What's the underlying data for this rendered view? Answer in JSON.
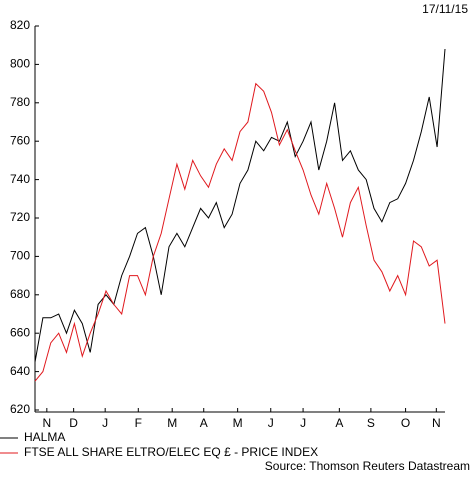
{
  "chart_data": {
    "type": "line",
    "date": "17/11/15",
    "source": "Source: Thomson Reuters Datastream",
    "x": [
      0,
      1,
      2,
      3,
      4,
      5,
      6,
      7,
      8,
      9,
      10,
      11,
      12,
      13,
      14,
      15,
      16,
      17,
      18,
      19,
      20,
      21,
      22,
      23,
      24,
      25,
      26,
      27,
      28,
      29,
      30,
      31,
      32,
      33,
      34,
      35,
      36,
      37,
      38,
      39,
      40,
      41,
      42,
      43,
      44,
      45,
      46,
      47,
      48,
      49,
      50,
      51,
      52
    ],
    "xlim": [
      0,
      52
    ],
    "xticks": [
      {
        "value": 1.5,
        "label": "N"
      },
      {
        "value": 4.9,
        "label": "D"
      },
      {
        "value": 8.9,
        "label": "J"
      },
      {
        "value": 13.1,
        "label": "F"
      },
      {
        "value": 17.4,
        "label": "M"
      },
      {
        "value": 21.4,
        "label": "A"
      },
      {
        "value": 25.7,
        "label": "M"
      },
      {
        "value": 29.9,
        "label": "J"
      },
      {
        "value": 34,
        "label": "J"
      },
      {
        "value": 38.6,
        "label": "A"
      },
      {
        "value": 42.6,
        "label": "S"
      },
      {
        "value": 47,
        "label": "O"
      },
      {
        "value": 50.9,
        "label": "N"
      }
    ],
    "ylim": [
      620,
      820
    ],
    "yticks": [
      620,
      640,
      660,
      680,
      700,
      720,
      740,
      760,
      780,
      800,
      820
    ],
    "series": [
      {
        "name": "HALMA",
        "color": "#000000",
        "values": [
          645,
          668,
          668,
          670,
          660,
          672,
          665,
          650,
          675,
          680,
          675,
          690,
          700,
          712,
          715,
          700,
          680,
          705,
          712,
          705,
          715,
          725,
          720,
          728,
          715,
          722,
          738,
          745,
          760,
          755,
          762,
          760,
          770,
          752,
          760,
          770,
          745,
          760,
          780,
          750,
          755,
          745,
          740,
          725,
          718,
          728,
          730,
          738,
          750,
          765,
          783,
          757,
          808
        ]
      },
      {
        "name": "FTSE ALL SHARE ELTRO/ELEC EQ £ - PRICE INDEX",
        "color": "#e0191e",
        "values": [
          635,
          640,
          655,
          660,
          650,
          665,
          648,
          660,
          670,
          682,
          675,
          670,
          690,
          690,
          680,
          700,
          712,
          730,
          748,
          735,
          750,
          742,
          736,
          748,
          756,
          750,
          765,
          770,
          790,
          786,
          775,
          758,
          766,
          755,
          745,
          732,
          722,
          738,
          725,
          710,
          728,
          736,
          716,
          698,
          692,
          682,
          690,
          680,
          708,
          705,
          695,
          698,
          665
        ]
      }
    ]
  }
}
